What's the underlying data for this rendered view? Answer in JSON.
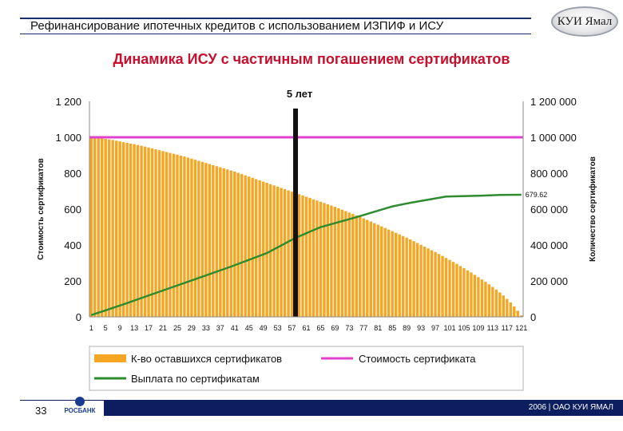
{
  "header": {
    "title": "Рефинансирование ипотечных кредитов с использованием ИЗПИФ и ИСУ",
    "logo_text": "КУИ Ямал"
  },
  "chart_data": {
    "type": "bar",
    "title": "Динамика ИСУ с частичным погашением сертификатов",
    "ylabel_left": "Стоимость сертификатов",
    "ylabel_right": "Количество сертификатов",
    "ylim_left": [
      0,
      1200
    ],
    "ylim_right": [
      0,
      1200000
    ],
    "yticks_left": [
      "0",
      "200",
      "400",
      "600",
      "800",
      "1 000",
      "1 200"
    ],
    "yticks_right": [
      "0",
      "200 000",
      "400 000",
      "600 000",
      "800 000",
      "1 000 000",
      "1 200 000"
    ],
    "x_range": [
      1,
      121
    ],
    "xticks": [
      "1",
      "5",
      "9",
      "13",
      "17",
      "21",
      "25",
      "29",
      "33",
      "37",
      "41",
      "45",
      "49",
      "53",
      "57",
      "61",
      "65",
      "69",
      "73",
      "77",
      "81",
      "85",
      "89",
      "93",
      "97",
      "101",
      "105",
      "109",
      "113",
      "117",
      "121"
    ],
    "marker": {
      "x": 58,
      "label": "5 лет"
    },
    "end_label": "679.62",
    "grid": false,
    "legend_position": "bottom",
    "colors": {
      "bars": "#f5a623",
      "price": "#e040d0",
      "payout": "#2e8b2e",
      "marker": "#111111"
    },
    "series": [
      {
        "name": "К-во оставшихся сертификатов",
        "kind": "bar",
        "axis": "right",
        "values": [
          1000000,
          998000,
          996000,
          994000,
          991000,
          988000,
          985000,
          981000,
          977000,
          973000,
          969000,
          965000,
          961000,
          957000,
          953000,
          948000,
          943000,
          938000,
          933000,
          928000,
          923000,
          918000,
          913000,
          908000,
          903000,
          898000,
          893000,
          887000,
          881000,
          875000,
          869000,
          863000,
          857000,
          851000,
          845000,
          839000,
          833000,
          827000,
          821000,
          815000,
          809000,
          802000,
          795000,
          788000,
          781000,
          774000,
          767000,
          760000,
          753000,
          746000,
          739000,
          732000,
          725000,
          718000,
          711000,
          704000,
          697000,
          690000,
          683000,
          676000,
          669000,
          662000,
          655000,
          648000,
          641000,
          634000,
          627000,
          620000,
          613000,
          605000,
          597000,
          589000,
          581000,
          573000,
          565000,
          557000,
          549000,
          540000,
          531000,
          522000,
          513000,
          504000,
          495000,
          486000,
          477000,
          468000,
          459000,
          450000,
          441000,
          431000,
          421000,
          411000,
          401000,
          391000,
          381000,
          371000,
          361000,
          350000,
          339000,
          328000,
          317000,
          306000,
          295000,
          283000,
          271000,
          259000,
          247000,
          234000,
          221000,
          208000,
          195000,
          181000,
          167000,
          152000,
          136000,
          119000,
          100000,
          80000,
          58000,
          34000,
          8000
        ]
      },
      {
        "name": "Стоимость сертификата",
        "kind": "line",
        "axis": "left",
        "values": [
          1000,
          1000
        ]
      },
      {
        "name": "Выплата по сертификатам",
        "kind": "line",
        "axis": "left",
        "x": [
          1,
          10,
          20,
          30,
          40,
          50,
          58,
          65,
          75,
          85,
          90,
          100,
          110,
          115,
          121
        ],
        "values": [
          10,
          70,
          140,
          210,
          280,
          355,
          440,
          500,
          555,
          615,
          635,
          670,
          675,
          679,
          680
        ]
      }
    ]
  },
  "footer": {
    "page_number": "33",
    "bank_name": "РОСБАНК",
    "copyright": "2006 | ОАО КУИ ЯМАЛ"
  }
}
